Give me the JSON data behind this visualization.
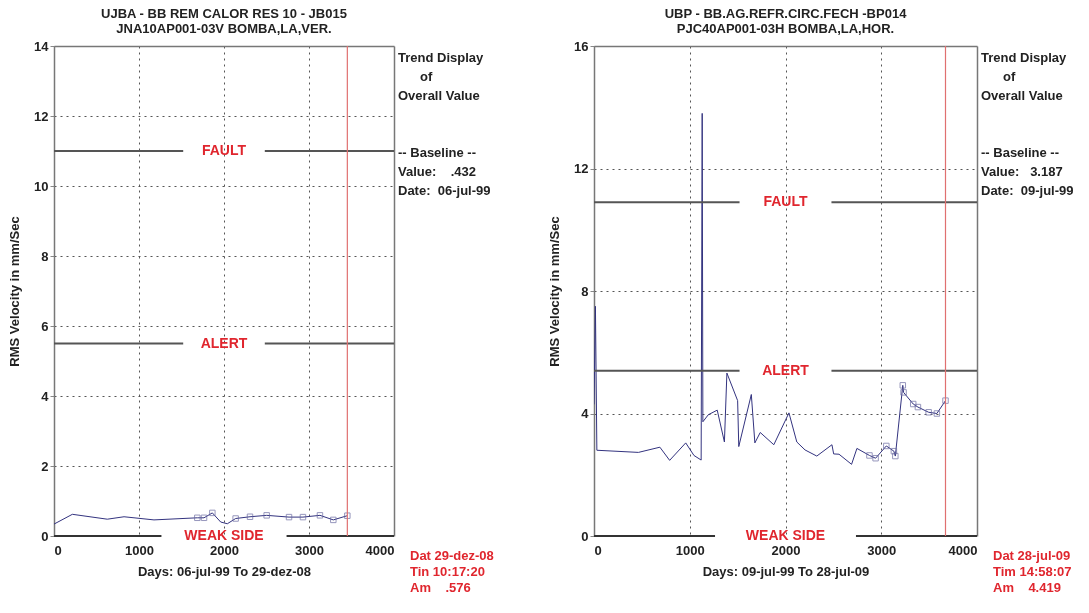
{
  "chart_data": [
    {
      "type": "line",
      "title": "UJBA - BB REM CALOR RES 10 - JB015",
      "subtitle": "JNA10AP001-03V   BOMBA,LA,VER.",
      "xlabel": "Days:  06-jul-99  To  29-dez-08",
      "ylabel": "RMS Velocity in mm/Sec",
      "xlim": [
        0,
        4000
      ],
      "xticks": [
        0,
        1000,
        2000,
        3000,
        4000
      ],
      "ylim": [
        0,
        14
      ],
      "yticks": [
        0,
        2,
        4,
        6,
        8,
        10,
        12,
        14
      ],
      "grid": true,
      "series": [
        {
          "type": "line",
          "color": "#33337f",
          "x": [
            0,
            216,
            627,
            824,
            1176,
            1686,
            1765,
            1863,
            1961,
            2039,
            2137,
            2306,
            2502,
            2765,
            2929,
            3129,
            3286,
            3451
          ],
          "values": [
            0.34,
            0.62,
            0.48,
            0.55,
            0.46,
            0.52,
            0.52,
            0.66,
            0.4,
            0.35,
            0.5,
            0.55,
            0.59,
            0.54,
            0.54,
            0.59,
            0.46,
            0.58
          ]
        },
        {
          "type": "scatter",
          "marker": "square",
          "color": "#6a6aa0",
          "x": [
            1686,
            1765,
            1863,
            2137,
            2306,
            2502,
            2765,
            2929,
            3129,
            3286,
            3451
          ],
          "values": [
            0.52,
            0.52,
            0.66,
            0.5,
            0.55,
            0.59,
            0.54,
            0.54,
            0.59,
            0.46,
            0.58
          ]
        }
      ],
      "ref_lines": [
        {
          "axis": "y",
          "value": 11,
          "label": "FAULT",
          "color": "#555555"
        },
        {
          "axis": "y",
          "value": 5.5,
          "label": "ALERT",
          "color": "#555555"
        },
        {
          "axis": "y",
          "value": 0,
          "label": "WEAK SIDE",
          "color": "#333333"
        },
        {
          "axis": "x",
          "value": 3451,
          "color": "#e07070"
        }
      ],
      "annotations": [
        "Trend Display",
        "of",
        "Overall Value",
        "-- Baseline --",
        "Value:    .432",
        "Date:  06-jul-99",
        "Dat 29-dez-08",
        "Tin 10:17:20",
        "Am    .576"
      ]
    },
    {
      "type": "line",
      "title": "UBP  - BB.AG.REFR.CIRC.FECH -BP014",
      "subtitle": "PJC40AP001-03H    BOMBA,LA,HOR.",
      "xlabel": "Days:  09-jul-99  To  28-jul-09",
      "ylabel": "RMS Velocity in mm/Sec",
      "xlim": [
        0,
        4000
      ],
      "xticks": [
        0,
        1000,
        2000,
        3000,
        4000
      ],
      "ylim": [
        0,
        16
      ],
      "yticks": [
        0,
        4,
        8,
        12,
        16
      ],
      "grid": true,
      "series": [
        {
          "type": "line",
          "color": "#33337f",
          "x": [
            0,
            15,
            30,
            464,
            688,
            790,
            958,
            1044,
            1119,
            1130,
            1137,
            1194,
            1287,
            1362,
            1388,
            1500,
            1512,
            1643,
            1680,
            1736,
            1878,
            2036,
            2118,
            2204,
            2327,
            2485,
            2503,
            2559,
            2690,
            2746,
            2877,
            2941,
            3053,
            3132,
            3147,
            3225,
            3233,
            3334,
            3383,
            3495,
            3581,
            3671
          ],
          "values": [
            4.3,
            7.5,
            2.8,
            2.73,
            2.9,
            2.47,
            3.04,
            2.63,
            2.48,
            13.8,
            3.73,
            3.96,
            4.11,
            3.07,
            5.32,
            4.42,
            2.92,
            4.62,
            3.04,
            3.38,
            2.98,
            4.02,
            3.07,
            2.81,
            2.61,
            2.98,
            2.68,
            2.67,
            2.34,
            2.86,
            2.63,
            2.54,
            2.94,
            2.77,
            2.61,
            4.92,
            4.69,
            4.31,
            4.21,
            4.04,
            4.0,
            4.42
          ]
        },
        {
          "type": "scatter",
          "marker": "square",
          "color": "#6a6aa0",
          "x": [
            2877,
            2941,
            3053,
            3132,
            3147,
            3225,
            3233,
            3334,
            3383,
            3495,
            3581,
            3671
          ],
          "values": [
            2.63,
            2.54,
            2.94,
            2.77,
            2.61,
            4.92,
            4.69,
            4.31,
            4.21,
            4.04,
            4.0,
            4.42
          ]
        }
      ],
      "ref_lines": [
        {
          "axis": "y",
          "value": 10.9,
          "label": "FAULT",
          "color": "#555555"
        },
        {
          "axis": "y",
          "value": 5.4,
          "label": "ALERT",
          "color": "#555555"
        },
        {
          "axis": "y",
          "value": 0,
          "label": "WEAK SIDE",
          "color": "#333333"
        },
        {
          "axis": "x",
          "value": 3671,
          "color": "#e07070"
        }
      ],
      "annotations": [
        "Trend Display",
        "of",
        "Overall Value",
        "-- Baseline --",
        "Value:   3.187",
        "Date:  09-jul-99",
        "Dat 28-jul-09",
        "Tim 14:58:07",
        "Am    4.419"
      ]
    }
  ]
}
